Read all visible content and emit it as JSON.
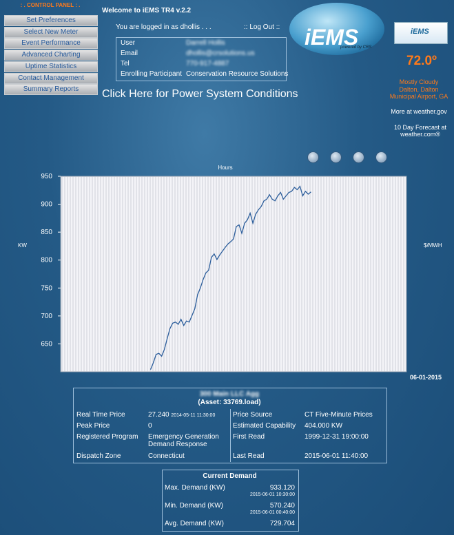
{
  "control_panel": {
    "title": ": . CONTROL PANEL : .",
    "items": [
      "Set Preferences",
      "Select New Meter",
      "Event Performance",
      "Advanced Charting",
      "Uptime Statistics",
      "Contact Management",
      "Summary Reports"
    ]
  },
  "header": {
    "welcome": "Welcome to iEMS TR4 v.2.2",
    "logged_in": "You are logged in as dhollis . . .",
    "logout": ":: Log Out ::"
  },
  "user_info": {
    "rows": [
      [
        "User",
        "Darrell Hollis"
      ],
      [
        "Email",
        "dhollis@crsolutions.us"
      ],
      [
        "Tel",
        "770-917-4887"
      ],
      [
        "Enrolling Participant",
        "Conservation Resource Solutions"
      ]
    ]
  },
  "logo": {
    "name": "iEMS",
    "tagline": "powered by CRS"
  },
  "weather": {
    "temperature": "72.0º",
    "condition": "Mostly Cloudy",
    "location": "Dalton, Dalton Municipal Airport, GA",
    "more": "More at weather.gov",
    "forecast": "10 Day Forecast at weather.com®"
  },
  "power_link": "Click Here for Power System Conditions",
  "chart_data": {
    "type": "line",
    "title": "Hours",
    "ylabel": "KW",
    "y2label": "$/MWH",
    "date_label": "06-01-2015",
    "color": "#2b5d9b",
    "ylim": [
      600,
      950
    ],
    "yticks": [
      650,
      700,
      750,
      800,
      850,
      900,
      950
    ],
    "values": [
      null,
      null,
      null,
      null,
      null,
      null,
      null,
      null,
      null,
      null,
      null,
      null,
      null,
      null,
      null,
      null,
      null,
      null,
      null,
      null,
      null,
      null,
      null,
      null,
      null,
      null,
      null,
      null,
      null,
      null,
      null,
      null,
      604,
      616,
      631,
      633,
      628,
      640,
      659,
      677,
      687,
      689,
      685,
      694,
      683,
      691,
      689,
      701,
      713,
      738,
      750,
      765,
      777,
      782,
      805,
      811,
      801,
      809,
      816,
      823,
      829,
      833,
      838,
      860,
      863,
      848,
      866,
      872,
      884,
      866,
      882,
      890,
      896,
      906,
      909,
      917,
      909,
      906,
      915,
      921,
      909,
      915,
      921,
      923,
      930,
      926,
      932,
      915,
      923,
      918,
      922,
      null,
      null,
      null,
      null,
      null,
      null,
      null,
      null,
      null,
      null,
      null,
      null,
      null,
      null,
      null,
      null,
      null,
      null,
      null,
      null,
      null,
      null,
      null,
      null,
      null,
      null,
      null,
      null,
      null,
      null,
      null,
      null,
      null,
      null
    ]
  },
  "asset_table": {
    "title": "300 Main LLC Agg",
    "asset": "(Asset: 33769.load)",
    "left_rows": [
      [
        "Real Time Price",
        "27.240",
        "2014-05-11 11:30:00"
      ],
      [
        "Peak Price",
        "0"
      ],
      [
        "Registered Program",
        "Emergency Generation Demand Response"
      ],
      [
        "Dispatch Zone",
        "Connecticut"
      ]
    ],
    "right_rows": [
      [
        "Price Source",
        "CT Five-Minute Prices"
      ],
      [
        "Estimated Capability",
        "404.000 KW"
      ],
      [
        "First Read",
        "1999-12-31 19:00:00"
      ],
      [
        "Last Read",
        "2015-06-01 11:40:00"
      ]
    ]
  },
  "current_demand": {
    "title": "Current Demand",
    "rows": [
      [
        "Max. Demand (KW)",
        "933.120",
        "2015-06-01 10:30:00"
      ],
      [
        "Min. Demand (KW)",
        "570.240",
        "2015-06-01 00:40:00"
      ],
      [
        "Avg. Demand (KW)",
        "729.704"
      ]
    ]
  }
}
